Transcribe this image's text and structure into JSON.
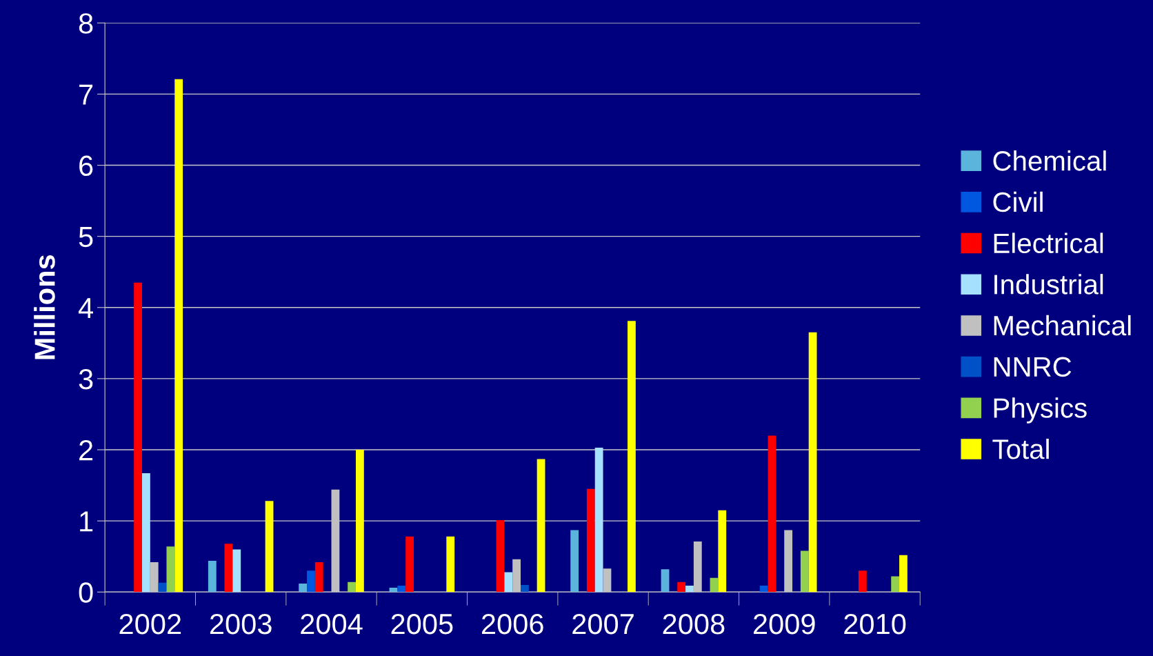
{
  "chart_data": {
    "type": "bar",
    "ylabel": "Millions",
    "categories": [
      "2002",
      "2003",
      "2004",
      "2005",
      "2006",
      "2007",
      "2008",
      "2009",
      "2010"
    ],
    "series": [
      {
        "name": "Chemical",
        "color": "#5bb4dc",
        "values": [
          0,
          0.44,
          0.12,
          0.06,
          0,
          0.87,
          0.32,
          0,
          0
        ]
      },
      {
        "name": "Civil",
        "color": "#0057e0",
        "values": [
          0,
          0,
          0.3,
          0.09,
          0,
          0,
          0,
          0.09,
          0
        ]
      },
      {
        "name": "Electrical",
        "color": "#ff0000",
        "values": [
          4.35,
          0.68,
          0.42,
          0.78,
          1.01,
          1.45,
          0.14,
          2.2,
          0.3
        ]
      },
      {
        "name": "Industrial",
        "color": "#a6e0ff",
        "values": [
          1.67,
          0.6,
          0,
          0,
          0.28,
          2.03,
          0.09,
          0,
          0
        ]
      },
      {
        "name": "Mechanical",
        "color": "#c0c0c0",
        "values": [
          0.42,
          0,
          1.44,
          0,
          0.46,
          0.33,
          0.71,
          0.87,
          0
        ]
      },
      {
        "name": "NNRC",
        "color": "#0050c8",
        "values": [
          0.13,
          0,
          0,
          0,
          0.1,
          0,
          0,
          0,
          0
        ]
      },
      {
        "name": "Physics",
        "color": "#92d050",
        "values": [
          0.64,
          0,
          0.14,
          0,
          0,
          0,
          0.2,
          0.58,
          0.22
        ]
      },
      {
        "name": "Total",
        "color": "#ffff00",
        "values": [
          7.21,
          1.28,
          2.0,
          0.78,
          1.87,
          3.81,
          1.15,
          3.65,
          0.52
        ]
      }
    ],
    "ylim": [
      0,
      8
    ],
    "yticks": [
      0,
      1,
      2,
      3,
      4,
      5,
      6,
      7,
      8
    ],
    "grid": "y",
    "legend": "right"
  }
}
